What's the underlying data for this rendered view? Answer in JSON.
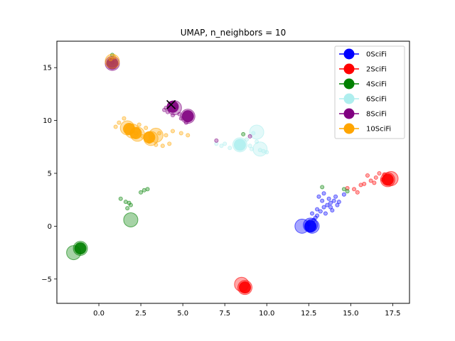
{
  "chart_data": {
    "type": "scatter",
    "title": "UMAP, n_neighbors = 10",
    "xlabel": "",
    "ylabel": "",
    "xlim": [
      -2.5,
      18.5
    ],
    "ylim": [
      -7.3,
      17.5
    ],
    "xticks": [
      0.0,
      2.5,
      5.0,
      7.5,
      10.0,
      12.5,
      15.0,
      17.5
    ],
    "xtick_labels": [
      "0.0",
      "2.5",
      "5.0",
      "7.5",
      "10.0",
      "12.5",
      "15.0",
      "17.5"
    ],
    "yticks": [
      -5,
      0,
      5,
      10,
      15
    ],
    "ytick_labels": [
      "−5",
      "0",
      "5",
      "10",
      "15"
    ],
    "grid": false,
    "legend_position": "top-right",
    "series": [
      {
        "name": "0SciFi",
        "color": "#0000ff",
        "small_points": [
          [
            12.5,
            0.2
          ],
          [
            12.8,
            0.6
          ],
          [
            13.0,
            1.0
          ],
          [
            13.2,
            1.4
          ],
          [
            13.4,
            1.8
          ],
          [
            13.6,
            2.0
          ],
          [
            13.8,
            2.2
          ],
          [
            14.0,
            2.4
          ],
          [
            13.1,
            2.8
          ],
          [
            13.4,
            3.1
          ],
          [
            13.7,
            2.6
          ],
          [
            14.2,
            2.0
          ],
          [
            13.0,
            1.6
          ],
          [
            12.7,
            1.2
          ],
          [
            13.9,
            1.5
          ],
          [
            14.1,
            2.8
          ],
          [
            13.3,
            2.4
          ],
          [
            12.9,
            0.8
          ],
          [
            13.5,
            1.2
          ],
          [
            14.3,
            2.3
          ],
          [
            14.6,
            3.0
          ],
          [
            13.8,
            1.8
          ]
        ],
        "big_points": [
          [
            12.1,
            0.0
          ],
          [
            12.6,
            0.1
          ],
          [
            12.7,
            0.0
          ]
        ],
        "marker_points": [
          [
            12.6,
            0.0
          ]
        ]
      },
      {
        "name": "2SciFi",
        "color": "#ff0000",
        "small_points": [
          [
            15.2,
            3.5
          ],
          [
            15.4,
            3.2
          ],
          [
            15.8,
            4.0
          ],
          [
            16.2,
            4.3
          ],
          [
            16.5,
            4.6
          ],
          [
            16.7,
            5.0
          ],
          [
            16.9,
            4.4
          ],
          [
            16.0,
            4.8
          ],
          [
            15.6,
            3.9
          ],
          [
            14.8,
            3.6
          ],
          [
            16.4,
            4.1
          ],
          [
            17.0,
            4.9
          ]
        ],
        "big_points": [
          [
            17.2,
            4.4
          ],
          [
            17.4,
            4.5
          ],
          [
            8.5,
            -5.5
          ],
          [
            8.7,
            -5.8
          ]
        ],
        "marker_points": [
          [
            17.2,
            4.4
          ],
          [
            8.7,
            -5.8
          ]
        ]
      },
      {
        "name": "4SciFi",
        "color": "#008000",
        "small_points": [
          [
            1.3,
            2.6
          ],
          [
            1.6,
            2.3
          ],
          [
            1.9,
            2.0
          ],
          [
            1.7,
            1.7
          ],
          [
            2.5,
            3.2
          ],
          [
            2.7,
            3.4
          ],
          [
            2.9,
            3.5
          ],
          [
            1.8,
            2.2
          ],
          [
            0.8,
            16.2
          ],
          [
            14.6,
            3.5
          ],
          [
            14.8,
            3.3
          ],
          [
            13.3,
            3.7
          ],
          [
            8.6,
            8.7
          ]
        ],
        "big_points": [
          [
            1.9,
            0.6
          ],
          [
            -1.5,
            -2.5
          ],
          [
            -1.1,
            -2.1
          ]
        ],
        "marker_points": [
          [
            -1.1,
            -2.1
          ]
        ]
      },
      {
        "name": "6SciFi",
        "color": "#aeeeee",
        "small_points": [
          [
            7.3,
            7.6
          ],
          [
            7.5,
            7.8
          ],
          [
            7.8,
            7.4
          ],
          [
            9.0,
            7.6
          ],
          [
            9.2,
            8.8
          ],
          [
            9.6,
            7.2
          ],
          [
            9.8,
            7.1
          ],
          [
            10.0,
            7.0
          ],
          [
            8.8,
            8.2
          ],
          [
            9.4,
            8.0
          ],
          [
            7.0,
            7.8
          ],
          [
            9.1,
            7.3
          ]
        ],
        "big_points": [
          [
            8.4,
            7.7
          ],
          [
            9.4,
            8.9
          ],
          [
            9.6,
            7.3
          ]
        ],
        "marker_points": [
          [
            8.4,
            7.7
          ]
        ]
      },
      {
        "name": "8SciFi",
        "color": "#800080",
        "small_points": [
          [
            3.9,
            11.0
          ],
          [
            4.1,
            10.8
          ],
          [
            4.4,
            10.5
          ],
          [
            4.6,
            11.3
          ],
          [
            4.9,
            10.2
          ],
          [
            5.2,
            9.8
          ],
          [
            4.0,
            11.2
          ],
          [
            4.8,
            10.6
          ],
          [
            7.0,
            8.1
          ],
          [
            9.0,
            8.5
          ],
          [
            0.8,
            15.5
          ]
        ],
        "big_points": [
          [
            4.5,
            11.2
          ],
          [
            5.3,
            10.4
          ],
          [
            0.8,
            15.4
          ]
        ],
        "marker_points": [
          [
            4.4,
            11.3
          ],
          [
            5.3,
            10.4
          ],
          [
            0.8,
            15.4
          ]
        ]
      },
      {
        "name": "10SciFi",
        "color": "#ffa500",
        "small_points": [
          [
            1.2,
            9.8
          ],
          [
            1.5,
            10.2
          ],
          [
            2.2,
            8.8
          ],
          [
            2.6,
            8.5
          ],
          [
            3.0,
            8.0
          ],
          [
            3.4,
            7.7
          ],
          [
            3.8,
            7.6
          ],
          [
            4.2,
            7.8
          ],
          [
            3.6,
            8.8
          ],
          [
            4.0,
            8.6
          ],
          [
            4.4,
            9.0
          ],
          [
            4.9,
            8.8
          ],
          [
            5.3,
            8.6
          ],
          [
            2.8,
            9.3
          ],
          [
            3.2,
            8.4
          ],
          [
            1.0,
            9.4
          ],
          [
            2.4,
            9.6
          ],
          [
            0.7,
            15.8
          ],
          [
            0.9,
            16.0
          ]
        ],
        "big_points": [
          [
            1.7,
            9.3
          ],
          [
            2.0,
            9.0
          ],
          [
            2.3,
            8.7
          ],
          [
            3.1,
            8.3
          ],
          [
            3.4,
            8.6
          ],
          [
            0.8,
            15.6
          ]
        ],
        "marker_points": [
          [
            1.8,
            9.2
          ],
          [
            2.2,
            8.8
          ],
          [
            3.0,
            8.4
          ]
        ]
      }
    ],
    "annotations": [
      {
        "type": "x-marker",
        "x": 4.3,
        "y": 11.5,
        "color": "#000000"
      }
    ]
  }
}
